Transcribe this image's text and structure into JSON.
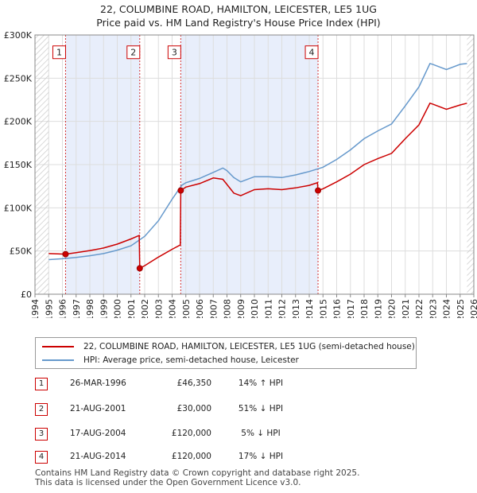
{
  "header": {
    "title": "22, COLUMBINE ROAD, HAMILTON, LEICESTER, LE5 1UG",
    "subtitle": "Price paid vs. HM Land Registry's House Price Index (HPI)"
  },
  "colors": {
    "price_line": "#cc0000",
    "hpi_line": "#6699cc",
    "shade": "#e8eefb",
    "grid": "#dddddd",
    "marker_border": "#cc0000"
  },
  "chart_data": {
    "type": "line",
    "title": "Price paid vs. HM Land Registry's House Price Index (HPI)",
    "xlabel": "",
    "ylabel": "",
    "xlim": [
      1994,
      2026
    ],
    "ylim": [
      0,
      300000
    ],
    "x_ticks": [
      1994,
      1995,
      1996,
      1997,
      1998,
      1999,
      2000,
      2001,
      2002,
      2003,
      2004,
      2005,
      2006,
      2007,
      2008,
      2009,
      2010,
      2011,
      2012,
      2013,
      2014,
      2015,
      2016,
      2017,
      2018,
      2019,
      2020,
      2021,
      2022,
      2023,
      2024,
      2025,
      2026
    ],
    "y_ticks": [
      0,
      50000,
      100000,
      150000,
      200000,
      250000,
      300000
    ],
    "y_tick_labels": [
      "£0",
      "£50K",
      "£100K",
      "£150K",
      "£200K",
      "£250K",
      "£300K"
    ],
    "grid": true,
    "data_start_year": 1995,
    "data_end_year": 2025.5,
    "shaded_spans": [
      [
        1996.23,
        2001.64
      ],
      [
        2004.63,
        2014.64
      ]
    ],
    "series": [
      {
        "name": "22, COLUMBINE ROAD, HAMILTON, LEICESTER, LE5 1UG (semi-detached house)",
        "color": "#cc0000",
        "points": [
          [
            1995,
            47000
          ],
          [
            1996.23,
            46350
          ],
          [
            1997,
            48000
          ],
          [
            1998,
            50500
          ],
          [
            1999,
            53500
          ],
          [
            2000,
            58000
          ],
          [
            2001,
            64000
          ],
          [
            2001.6,
            68000
          ],
          [
            2001.64,
            30000
          ],
          [
            2002,
            33000
          ],
          [
            2003,
            43000
          ],
          [
            2004,
            52000
          ],
          [
            2004.6,
            57000
          ],
          [
            2004.63,
            120000
          ],
          [
            2005,
            124000
          ],
          [
            2006,
            128000
          ],
          [
            2007,
            134500
          ],
          [
            2007.7,
            133000
          ],
          [
            2008,
            127000
          ],
          [
            2008.5,
            117000
          ],
          [
            2009,
            114000
          ],
          [
            2010,
            121000
          ],
          [
            2011,
            122000
          ],
          [
            2012,
            121000
          ],
          [
            2013,
            123000
          ],
          [
            2014,
            126000
          ],
          [
            2014.6,
            129000
          ],
          [
            2014.64,
            120000
          ],
          [
            2015,
            122000
          ],
          [
            2016,
            130000
          ],
          [
            2017,
            139000
          ],
          [
            2018,
            150000
          ],
          [
            2019,
            157000
          ],
          [
            2020,
            163000
          ],
          [
            2021,
            180000
          ],
          [
            2022,
            196000
          ],
          [
            2022.8,
            221000
          ],
          [
            2023,
            220000
          ],
          [
            2024,
            214000
          ],
          [
            2025,
            219000
          ],
          [
            2025.5,
            221000
          ]
        ]
      },
      {
        "name": "HPI: Average price, semi-detached house, Leicester",
        "color": "#6699cc",
        "points": [
          [
            1995,
            40000
          ],
          [
            1996,
            41000
          ],
          [
            1997,
            42500
          ],
          [
            1998,
            44500
          ],
          [
            1999,
            47000
          ],
          [
            2000,
            51000
          ],
          [
            2001,
            56000
          ],
          [
            2002,
            67000
          ],
          [
            2003,
            85000
          ],
          [
            2004,
            110000
          ],
          [
            2004.7,
            126000
          ],
          [
            2005,
            129000
          ],
          [
            2006,
            134000
          ],
          [
            2007,
            141000
          ],
          [
            2007.7,
            146000
          ],
          [
            2008,
            143000
          ],
          [
            2008.5,
            135000
          ],
          [
            2009,
            130000
          ],
          [
            2010,
            136000
          ],
          [
            2011,
            136000
          ],
          [
            2012,
            135000
          ],
          [
            2013,
            138000
          ],
          [
            2014,
            142000
          ],
          [
            2015,
            147000
          ],
          [
            2016,
            156000
          ],
          [
            2017,
            167000
          ],
          [
            2018,
            180000
          ],
          [
            2019,
            189000
          ],
          [
            2020,
            197000
          ],
          [
            2021,
            218000
          ],
          [
            2022,
            240000
          ],
          [
            2022.8,
            267000
          ],
          [
            2023,
            266000
          ],
          [
            2024,
            260000
          ],
          [
            2025,
            266000
          ],
          [
            2025.5,
            267000
          ]
        ]
      }
    ],
    "transactions": [
      {
        "label": "1",
        "year": 1996.23,
        "price": 46350
      },
      {
        "label": "2",
        "year": 2001.64,
        "price": 30000
      },
      {
        "label": "3",
        "year": 2004.63,
        "price": 120000
      },
      {
        "label": "4",
        "year": 2014.64,
        "price": 120000
      }
    ],
    "marker_label_value": 280000
  },
  "legend": {
    "property": "22, COLUMBINE ROAD, HAMILTON, LEICESTER, LE5 1UG (semi-detached house)",
    "hpi": "HPI: Average price, semi-detached house, Leicester"
  },
  "transactions_table": [
    {
      "num": "1",
      "date": "26-MAR-1996",
      "price": "£46,350",
      "hpi": "14% ↑ HPI"
    },
    {
      "num": "2",
      "date": "21-AUG-2001",
      "price": "£30,000",
      "hpi": "51% ↓ HPI"
    },
    {
      "num": "3",
      "date": "17-AUG-2004",
      "price": "£120,000",
      "hpi": "5% ↓ HPI"
    },
    {
      "num": "4",
      "date": "21-AUG-2014",
      "price": "£120,000",
      "hpi": "17% ↓ HPI"
    }
  ],
  "footer": {
    "line1": "Contains HM Land Registry data © Crown copyright and database right 2025.",
    "line2": "This data is licensed under the Open Government Licence v3.0."
  }
}
